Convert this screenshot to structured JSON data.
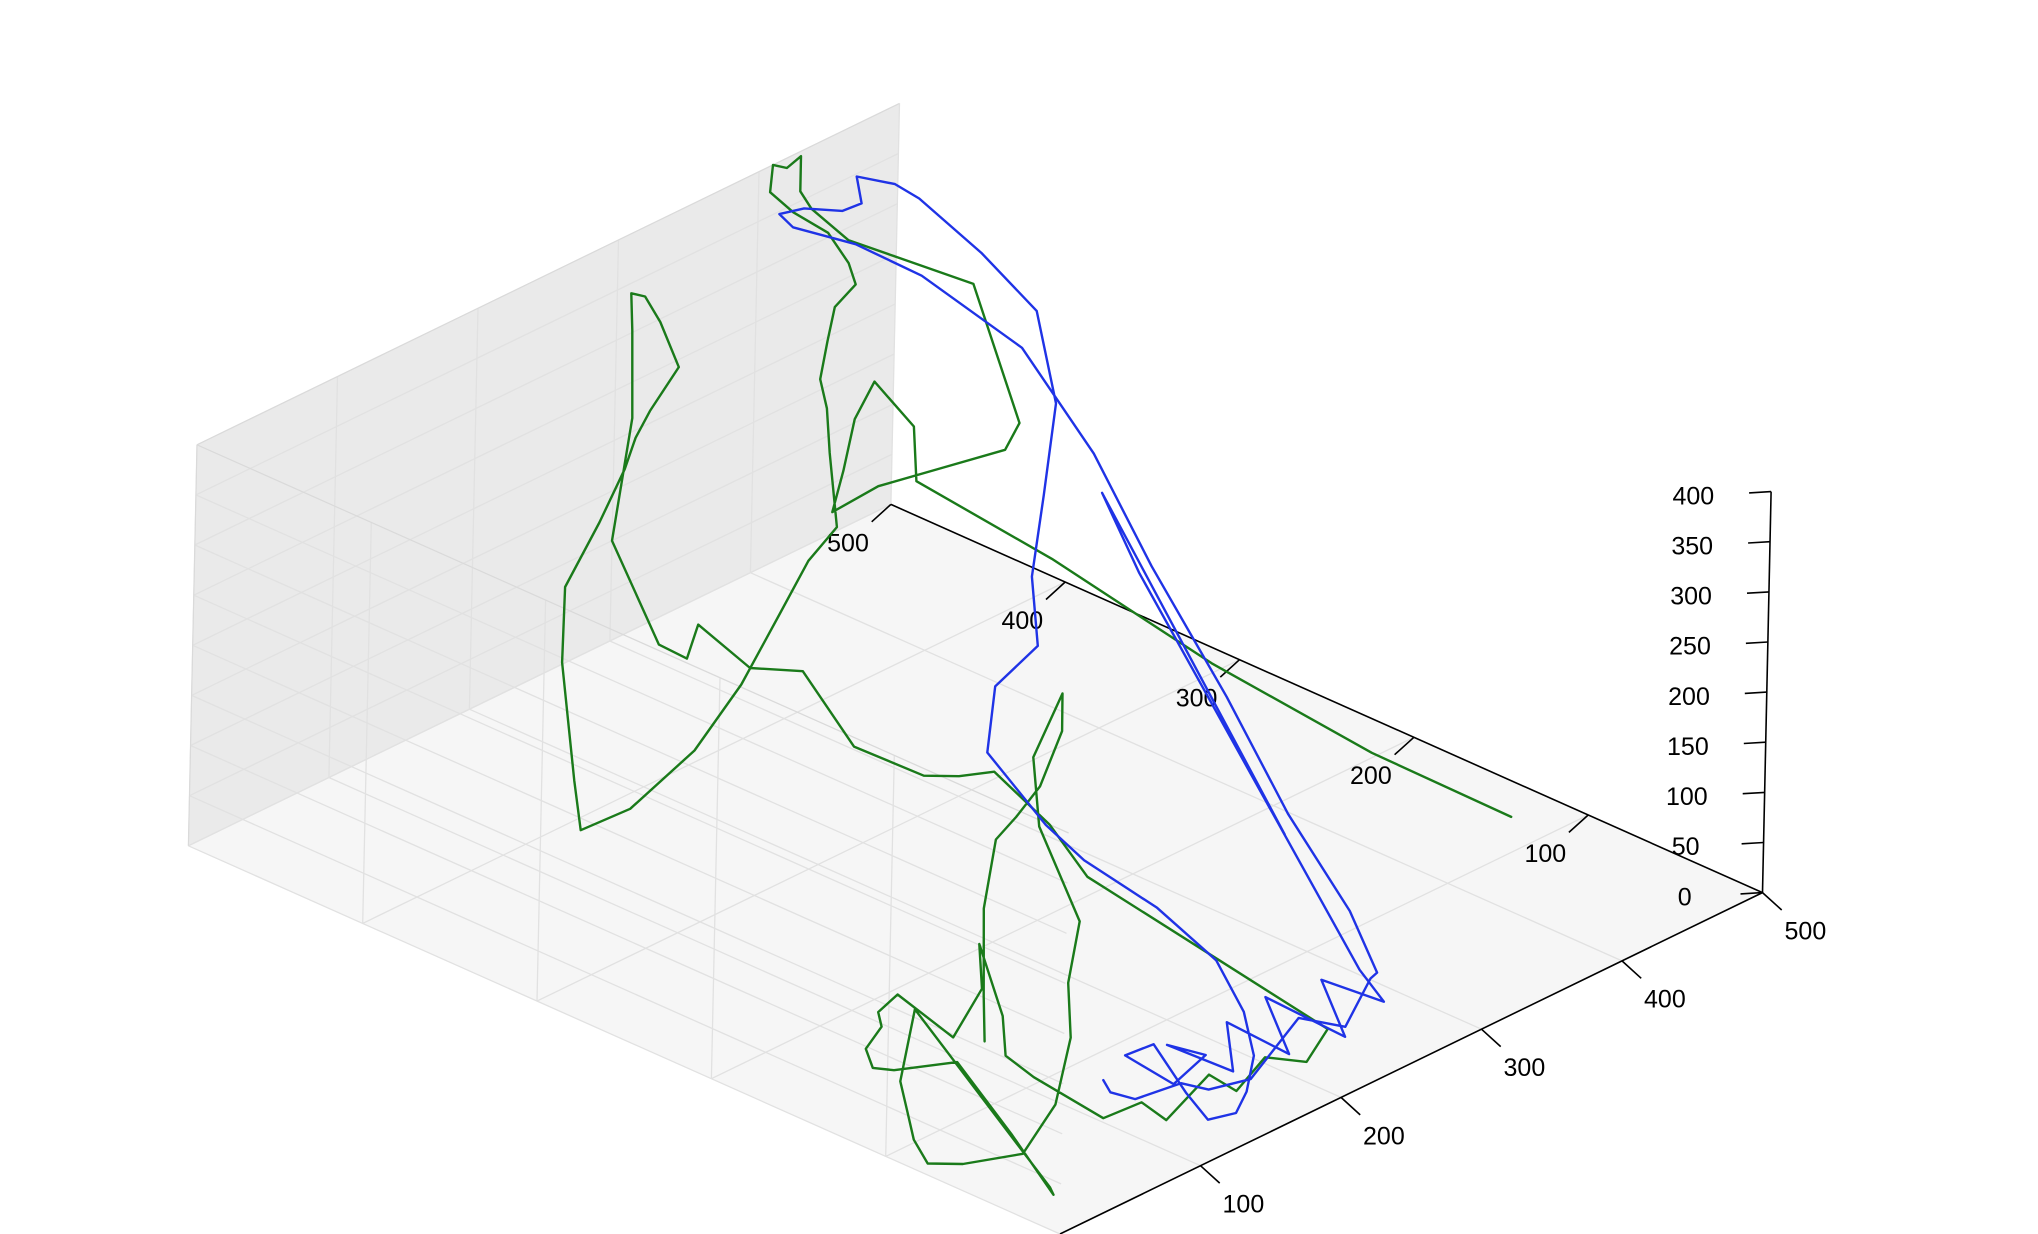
{
  "chart_data": {
    "type": "line3d",
    "title": "",
    "xlabel": "",
    "ylabel": "",
    "zlabel": "",
    "grid": true,
    "xlim": [
      0,
      500
    ],
    "ylim": [
      0,
      500
    ],
    "zlim": [
      0,
      400
    ],
    "x_ticks": [
      100,
      200,
      300,
      400,
      500
    ],
    "y_ticks": [
      100,
      200,
      300,
      400,
      500
    ],
    "z_ticks": [
      0,
      50,
      100,
      150,
      200,
      250,
      300,
      350,
      400
    ],
    "view": {
      "elev": 30,
      "azim": -135
    },
    "series": [
      {
        "color": "#1a7a1a",
        "x": [
          120,
          125,
          130,
          125,
          95,
          80,
          95,
          120,
          100,
          80,
          60,
          40,
          30,
          20,
          10,
          5,
          5,
          20,
          40,
          60,
          90,
          120,
          30,
          20,
          40,
          50,
          30,
          40,
          60,
          90,
          100,
          120,
          110,
          130,
          140,
          120,
          110,
          80,
          80,
          82,
          100,
          130,
          150,
          170,
          200,
          240,
          260,
          280,
          290,
          300,
          300,
          300,
          300,
          300,
          300,
          300,
          305,
          310,
          300,
          300,
          305,
          310,
          320,
          325,
          320,
          300,
          290,
          270,
          240,
          210,
          190,
          170,
          150,
          130,
          140,
          160,
          180,
          200,
          220,
          240,
          240,
          250,
          270,
          300,
          330,
          370,
          390,
          400,
          400,
          402,
          410,
          420,
          430,
          430,
          432,
          440,
          460,
          480,
          490,
          480,
          460,
          440,
          420,
          440,
          460,
          480,
          490,
          480,
          490,
          480,
          470,
          470
        ],
        "y": [
          140,
          145,
          150,
          140,
          105,
          80,
          80,
          100,
          100,
          80,
          40,
          30,
          20,
          20,
          30,
          60,
          80,
          100,
          120,
          140,
          160,
          180,
          30,
          20,
          60,
          100,
          120,
          140,
          160,
          175,
          185,
          190,
          150,
          150,
          160,
          130,
          120,
          80,
          40,
          20,
          20,
          20,
          20,
          20,
          20,
          40,
          120,
          210,
          240,
          280,
          300,
          320,
          360,
          390,
          420,
          450,
          460,
          480,
          500,
          490,
          495,
          500,
          500,
          495,
          480,
          480,
          480,
          470,
          460,
          455,
          440,
          420,
          400,
          380,
          360,
          340,
          330,
          325,
          325,
          325,
          330,
          340,
          360,
          380,
          400,
          420,
          440,
          460,
          480,
          495,
          500,
          500,
          500,
          500,
          495,
          480,
          460,
          440,
          420,
          420,
          440,
          460,
          470,
          480,
          490,
          495,
          480,
          470,
          400,
          300,
          200,
          120
        ],
        "z": [
          2,
          40,
          120,
          200,
          270,
          330,
          375,
          380,
          330,
          290,
          240,
          200,
          160,
          100,
          50,
          20,
          5,
          3,
          3,
          3,
          3,
          3,
          3,
          10,
          25,
          60,
          50,
          30,
          20,
          10,
          10,
          10,
          5,
          40,
          70,
          35,
          10,
          40,
          30,
          60,
          30,
          55,
          25,
          45,
          20,
          10,
          5,
          3,
          25,
          40,
          20,
          5,
          3,
          55,
          35,
          55,
          10,
          5,
          100,
          230,
          310,
          340,
          330,
          305,
          275,
          245,
          225,
          215,
          190,
          150,
          100,
          70,
          40,
          20,
          50,
          110,
          170,
          230,
          270,
          290,
          360,
          390,
          390,
          392,
          390,
          370,
          362,
          370,
          375,
          382,
          400,
          390,
          395,
          360,
          345,
          320,
          300,
          280,
          150,
          130,
          110,
          90,
          70,
          90,
          120,
          140,
          100,
          60,
          30,
          10,
          5,
          3
        ]
      },
      {
        "color": "#1f33e6",
        "x": [
          130,
          110,
          90,
          110,
          130,
          160,
          200,
          240,
          270,
          300,
          330,
          360,
          390,
          410,
          430,
          440,
          430,
          420,
          400,
          390,
          395,
          410,
          430,
          445,
          460,
          465,
          460,
          450,
          440,
          420,
          400,
          380,
          350,
          320,
          300,
          290,
          280,
          260,
          230,
          200,
          170,
          150,
          130,
          120,
          115,
          120,
          130,
          140,
          150,
          160,
          180,
          200,
          220,
          240,
          260,
          280,
          300,
          300,
          310,
          320
        ],
        "y": [
          80,
          60,
          30,
          20,
          20,
          20,
          25,
          30,
          40,
          60,
          100,
          160,
          220,
          280,
          330,
          380,
          430,
          460,
          480,
          480,
          470,
          460,
          465,
          480,
          470,
          460,
          420,
          380,
          360,
          350,
          340,
          320,
          320,
          300,
          250,
          220,
          170,
          120,
          80,
          50,
          30,
          20,
          20,
          25,
          40,
          60,
          40,
          30,
          60,
          30,
          50,
          30,
          60,
          30,
          60,
          40,
          70,
          200,
          230,
          130
        ],
        "z": [
          3,
          20,
          50,
          60,
          40,
          30,
          60,
          20,
          40,
          10,
          20,
          50,
          100,
          170,
          230,
          290,
          330,
          345,
          360,
          380,
          390,
          385,
          375,
          380,
          370,
          360,
          340,
          320,
          250,
          180,
          120,
          80,
          60,
          30,
          10,
          5,
          3,
          3,
          3,
          3,
          3,
          3,
          10,
          40,
          80,
          50,
          30,
          60,
          40,
          30,
          50,
          20,
          40,
          10,
          30,
          10,
          5,
          300,
          350,
          80
        ]
      }
    ]
  }
}
